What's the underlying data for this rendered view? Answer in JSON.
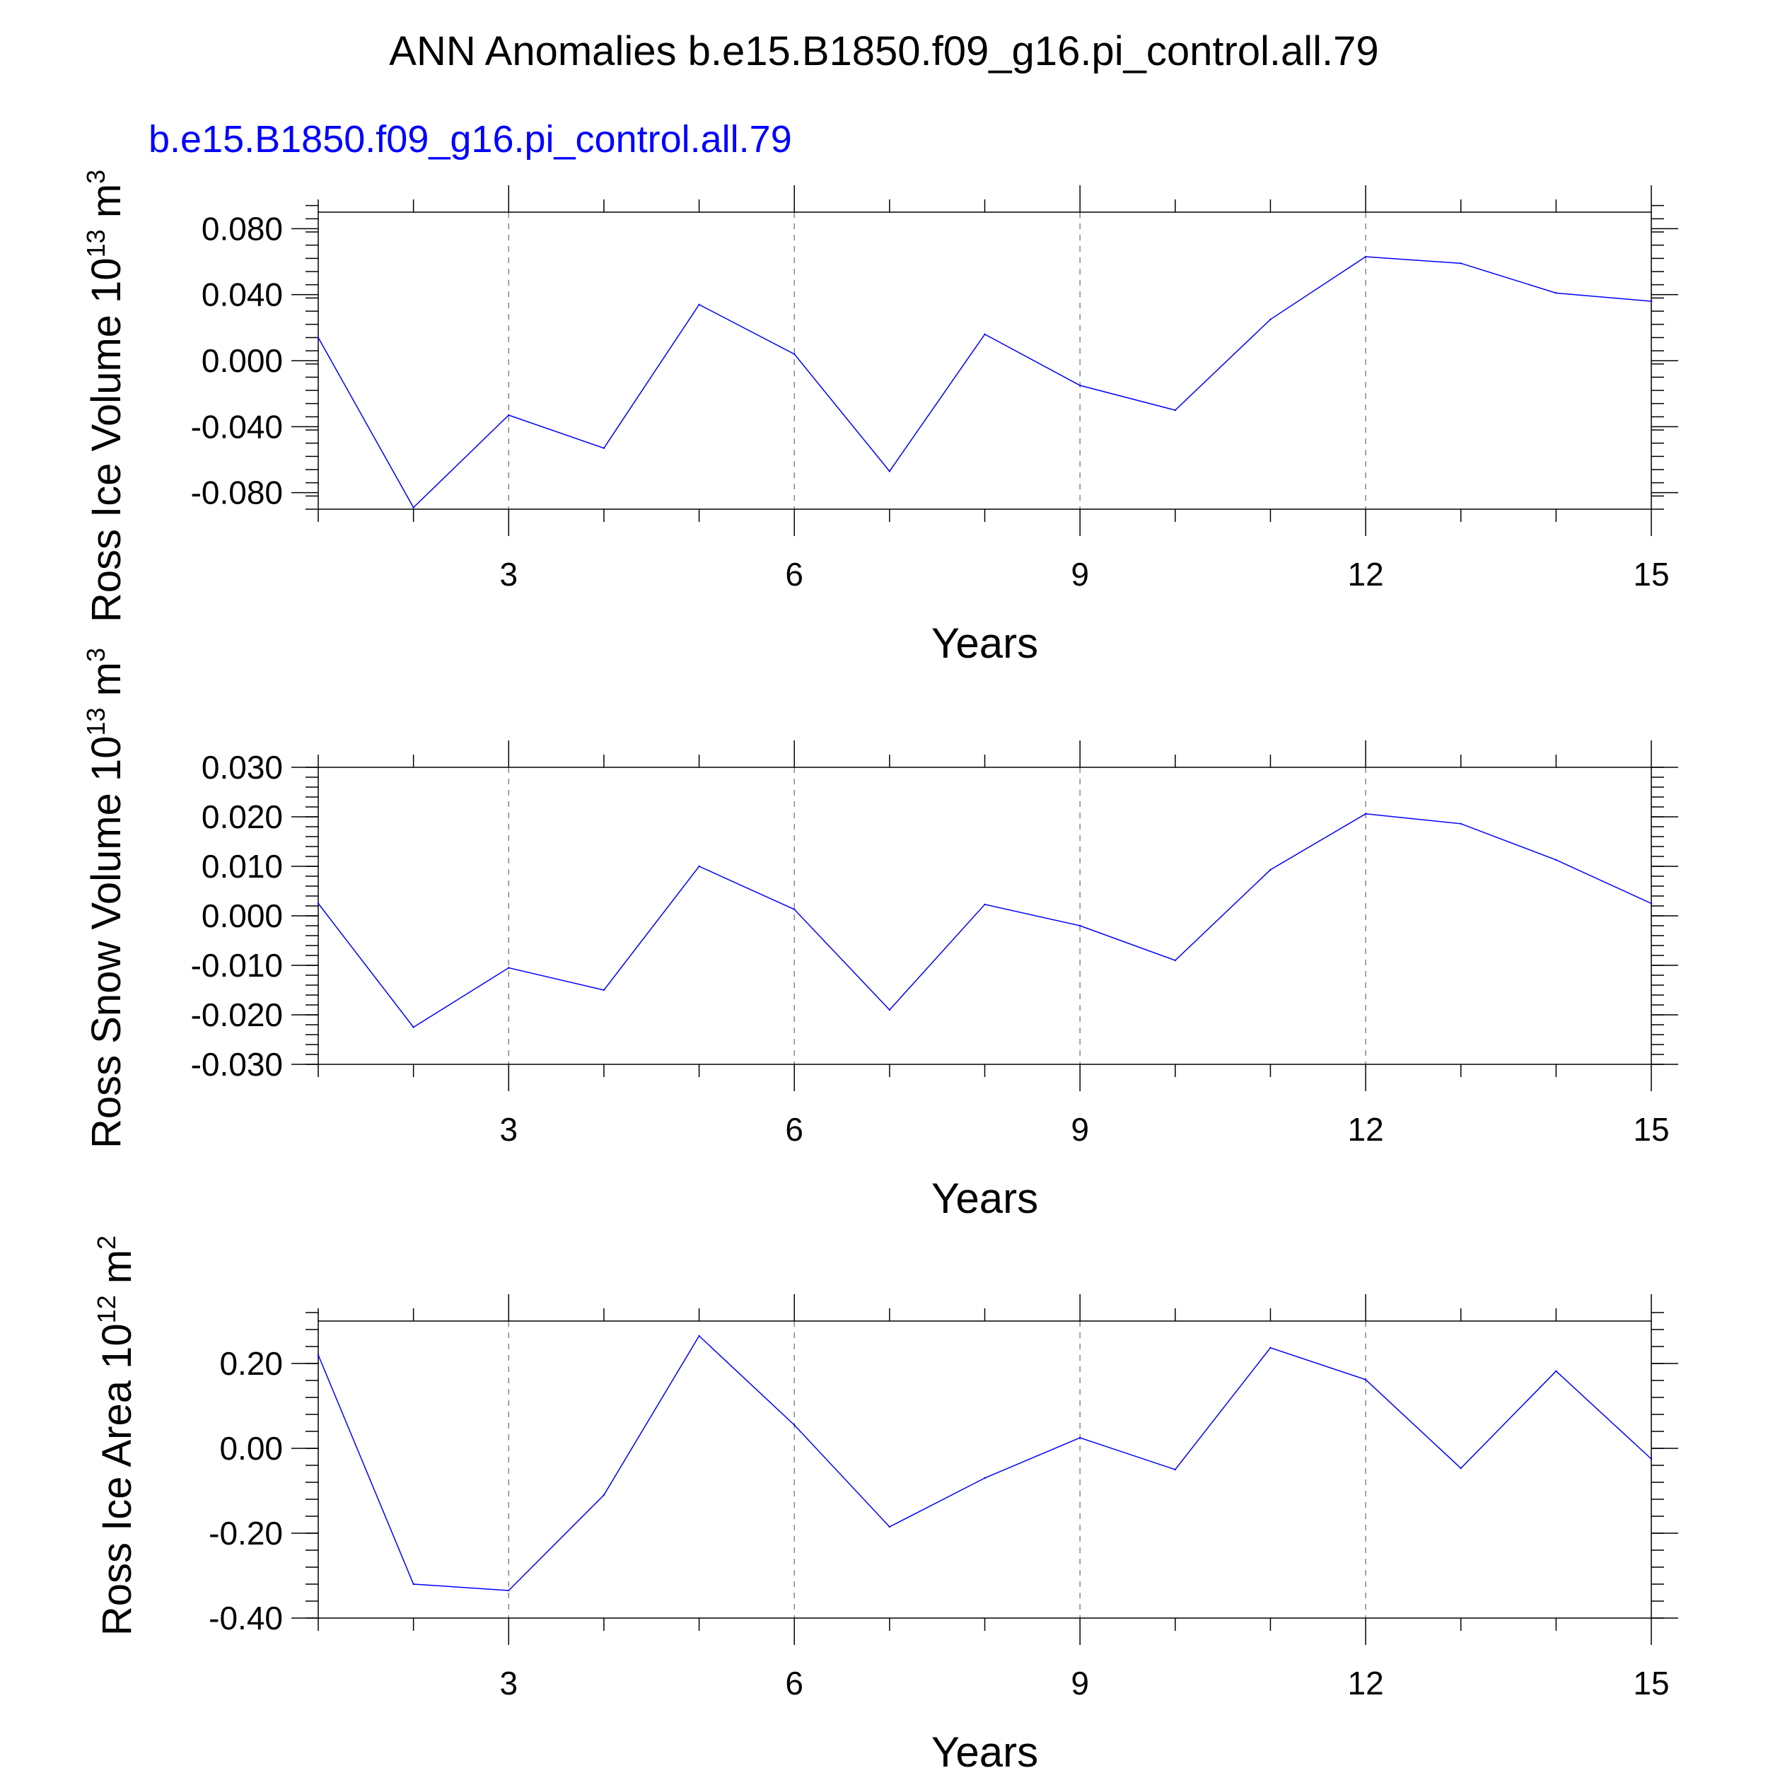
{
  "figure": {
    "title": "ANN Anomalies b.e15.B1850.f09_g16.pi_control.all.79",
    "legend_label": "b.e15.B1850.f09_g16.pi_control.all.79",
    "line_color": "#0000ff"
  },
  "chart_data": [
    {
      "type": "line",
      "ylabel": {
        "text": "Ross Ice Volume 10",
        "exp": "13",
        "unit": " m",
        "unit_exp": "3"
      },
      "xlabel": "Years",
      "xlim": [
        1,
        15
      ],
      "ylim": [
        -0.09,
        0.09
      ],
      "xticks": [
        3,
        6,
        9,
        12,
        15
      ],
      "yticks": [
        -0.08,
        -0.04,
        0.0,
        0.04,
        0.08
      ],
      "ytick_labels": [
        "-0.080",
        "-0.040",
        "0.000",
        "0.040",
        "0.080"
      ],
      "yminor_step": 0.008,
      "series": [
        {
          "name": "b.e15.B1850.f09_g16.pi_control.all.79",
          "x": [
            1,
            2,
            3,
            4,
            5,
            6,
            7,
            8,
            9,
            10,
            11,
            12,
            13,
            14,
            15
          ],
          "values": [
            0.014,
            -0.089,
            -0.033,
            -0.053,
            0.034,
            0.004,
            -0.067,
            0.016,
            -0.015,
            -0.03,
            0.025,
            0.063,
            0.059,
            0.041,
            0.036
          ]
        }
      ]
    },
    {
      "type": "line",
      "ylabel": {
        "text": "Ross Snow Volume 10",
        "exp": "13",
        "unit": " m",
        "unit_exp": "3"
      },
      "xlabel": "Years",
      "xlim": [
        1,
        15
      ],
      "ylim": [
        -0.03,
        0.03
      ],
      "xticks": [
        3,
        6,
        9,
        12,
        15
      ],
      "yticks": [
        -0.03,
        -0.02,
        -0.01,
        0.0,
        0.01,
        0.02,
        0.03
      ],
      "ytick_labels": [
        "-0.030",
        "-0.020",
        "-0.010",
        "0.000",
        "0.010",
        "0.020",
        "0.030"
      ],
      "yminor_step": 0.002,
      "series": [
        {
          "name": "b.e15.B1850.f09_g16.pi_control.all.79",
          "x": [
            1,
            2,
            3,
            4,
            5,
            6,
            7,
            8,
            9,
            10,
            11,
            12,
            13,
            14,
            15
          ],
          "values": [
            0.0025,
            -0.0225,
            -0.0105,
            -0.015,
            0.01,
            0.0013,
            -0.019,
            0.0023,
            -0.002,
            -0.009,
            0.0093,
            0.0206,
            0.0186,
            0.0113,
            0.0025
          ]
        }
      ]
    },
    {
      "type": "line",
      "ylabel": {
        "text": "Ross Ice Area 10",
        "exp": "12",
        "unit": " m",
        "unit_exp": "2"
      },
      "xlabel": "Years",
      "xlim": [
        1,
        15
      ],
      "ylim": [
        -0.4,
        0.3
      ],
      "xticks": [
        3,
        6,
        9,
        12,
        15
      ],
      "yticks": [
        -0.4,
        -0.2,
        0.0,
        0.2
      ],
      "ytick_labels": [
        "-0.40",
        "-0.20",
        "0.00",
        "0.20"
      ],
      "yminor_step": 0.04,
      "series": [
        {
          "name": "b.e15.B1850.f09_g16.pi_control.all.79",
          "x": [
            1,
            2,
            3,
            4,
            5,
            6,
            7,
            8,
            9,
            10,
            11,
            12,
            13,
            14,
            15
          ],
          "values": [
            0.22,
            -0.32,
            -0.335,
            -0.11,
            0.265,
            0.055,
            -0.185,
            -0.07,
            0.025,
            -0.05,
            0.237,
            0.162,
            -0.047,
            0.182,
            -0.025
          ]
        }
      ]
    }
  ]
}
